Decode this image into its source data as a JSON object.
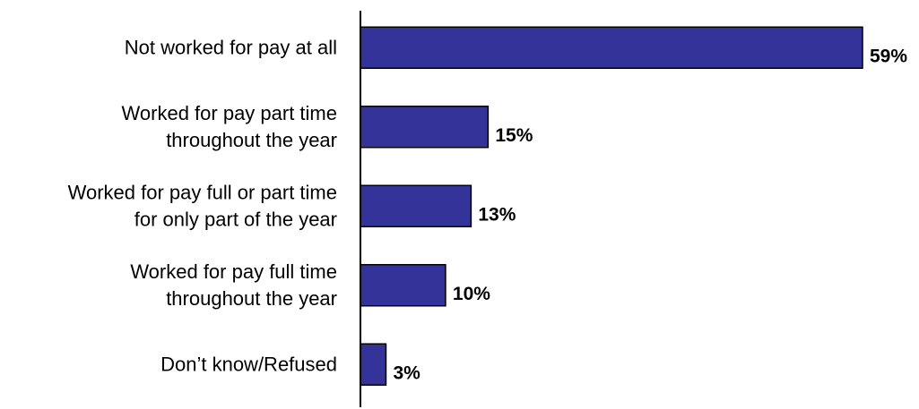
{
  "colors": {
    "bar_fill": "#333399",
    "bar_stroke": "#000000",
    "axis": "#000000"
  },
  "chart_data": {
    "type": "bar",
    "orientation": "horizontal",
    "categories": [
      [
        "Not worked for pay at all"
      ],
      [
        "Worked for pay part time",
        "throughout the year"
      ],
      [
        "Worked for pay full or part time",
        "for only part of the year"
      ],
      [
        "Worked for pay full time",
        "throughout the year"
      ],
      [
        "Don’t know/Refused"
      ]
    ],
    "values": [
      59,
      15,
      13,
      10,
      3
    ],
    "data_labels": [
      "59%",
      "15%",
      "13%",
      "10%",
      "3%"
    ],
    "unit": "%",
    "xlim": [
      0,
      59
    ],
    "grid": false,
    "legend": false
  }
}
